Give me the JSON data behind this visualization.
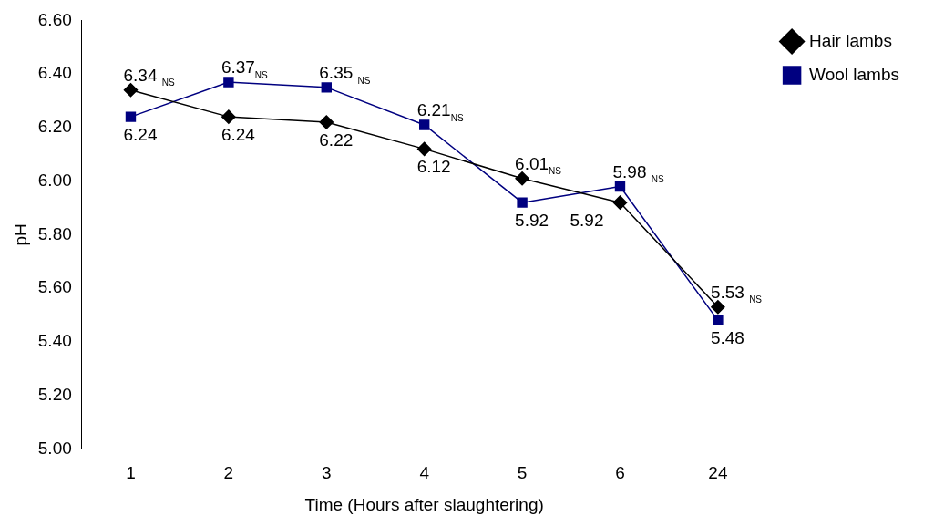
{
  "chart_data": {
    "type": "line",
    "xlabel": "Time (Hours after slaughtering)",
    "ylabel": "pH",
    "categories": [
      "1",
      "2",
      "3",
      "4",
      "5",
      "6",
      "24"
    ],
    "series": [
      {
        "name": "Hair lambs",
        "color": "#000000",
        "marker": "diamond",
        "values": [
          6.34,
          6.24,
          6.22,
          6.12,
          6.01,
          5.92,
          5.53
        ],
        "value_labels": [
          "6.34 $_{NS}$",
          "6.24",
          "6.22",
          "6.12",
          "6.01$_{NS}$",
          "5.92",
          "5.53 $_{NS}$"
        ]
      },
      {
        "name": "Wool lambs",
        "color": "#000080",
        "marker": "square",
        "values": [
          6.24,
          6.37,
          6.35,
          6.21,
          5.92,
          5.98,
          5.48
        ],
        "value_labels": [
          "6.24",
          "6.37$_{NS}$",
          "6.35 $_{NS}$",
          "6.21$_{NS}$",
          "5.92",
          "5.98 $_{NS}$",
          "5.48"
        ]
      }
    ],
    "ylim": [
      5,
      6.6
    ],
    "yticks": [
      {
        "value": 5,
        "label": "5.00"
      },
      {
        "value": 5.2,
        "label": "5.20"
      },
      {
        "value": 5.4,
        "label": "5.40"
      },
      {
        "value": 5.6,
        "label": "5.60"
      },
      {
        "value": 5.8,
        "label": "5.80"
      },
      {
        "value": 6,
        "label": "6.00"
      },
      {
        "value": 6.2,
        "label": "6.20"
      },
      {
        "value": 6.4,
        "label": "6.40"
      },
      {
        "value": 6.6,
        "label": "6.60"
      }
    ],
    "grid": false,
    "legend": "top right",
    "line_style": "solid"
  }
}
